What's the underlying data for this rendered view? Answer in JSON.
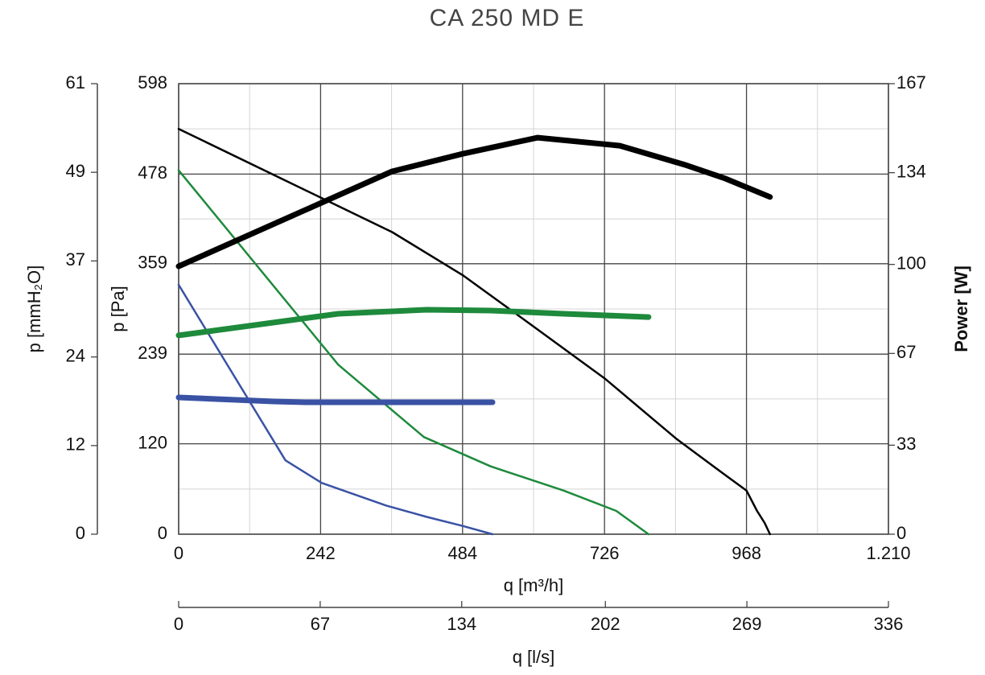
{
  "chart_data": {
    "type": "line",
    "title": "CA 250 MD E",
    "xlabel": "q [m³/h]",
    "ylabel": "p [Pa]",
    "y2label": "Power [W]",
    "y3label": "p [mmH₂O]",
    "x2label": "q [l/s]",
    "xlim": [
      0,
      1210
    ],
    "xticks": [
      0,
      242,
      484,
      726,
      968,
      {
        "value": 1210,
        "label": "1.210"
      }
    ],
    "ylim": [
      0,
      598
    ],
    "yticks": [
      0,
      120,
      239,
      359,
      478,
      598
    ],
    "y2lim": [
      0,
      167
    ],
    "y2ticks": [
      0,
      33,
      67,
      100,
      134,
      167
    ],
    "y3lim": [
      0,
      61
    ],
    "y3ticks": [
      0,
      12,
      24,
      37,
      49,
      61
    ],
    "x2lim": [
      0,
      336
    ],
    "x2ticks": [
      0,
      67,
      134,
      202,
      269,
      336
    ],
    "grid": true,
    "series": [
      {
        "color": "#000000",
        "width": 2.5,
        "x": [
          0,
          364,
          484,
          601,
          726,
          848,
          931,
          968,
          986,
          999,
          1008
        ],
        "values": [
          538,
          401,
          344,
          278,
          207,
          127,
          79,
          58,
          31,
          15,
          0
        ]
      },
      {
        "color": "#1e8a3c",
        "width": 2.5,
        "x": [
          0,
          272,
          418,
          532,
          656,
          746,
          801
        ],
        "values": [
          483,
          225,
          129,
          90,
          58,
          31,
          0
        ]
      },
      {
        "color": "#3a52a4",
        "width": 2.5,
        "x": [
          0,
          182,
          244,
          354,
          423,
          484,
          535
        ],
        "values": [
          331,
          98,
          68,
          38,
          23,
          11,
          0
        ]
      },
      {
        "color": "#000000",
        "width": 7,
        "axis": "y2",
        "x": [
          0,
          364,
          484,
          612,
          752,
          862,
          930,
          1008
        ],
        "values": [
          99.3,
          134.5,
          141,
          147,
          144,
          137,
          132,
          125
        ]
      },
      {
        "color": "#1e8a3c",
        "width": 7,
        "axis": "y2",
        "x": [
          0,
          272,
          423,
          532,
          656,
          801
        ],
        "values": [
          73.7,
          81.7,
          83.2,
          82.9,
          81.7,
          80.5
        ]
      },
      {
        "color": "#3a52a4",
        "width": 7,
        "axis": "y2",
        "x": [
          0,
          162,
          217,
          535
        ],
        "values": [
          50.7,
          49.2,
          48.9,
          48.9
        ]
      }
    ]
  }
}
